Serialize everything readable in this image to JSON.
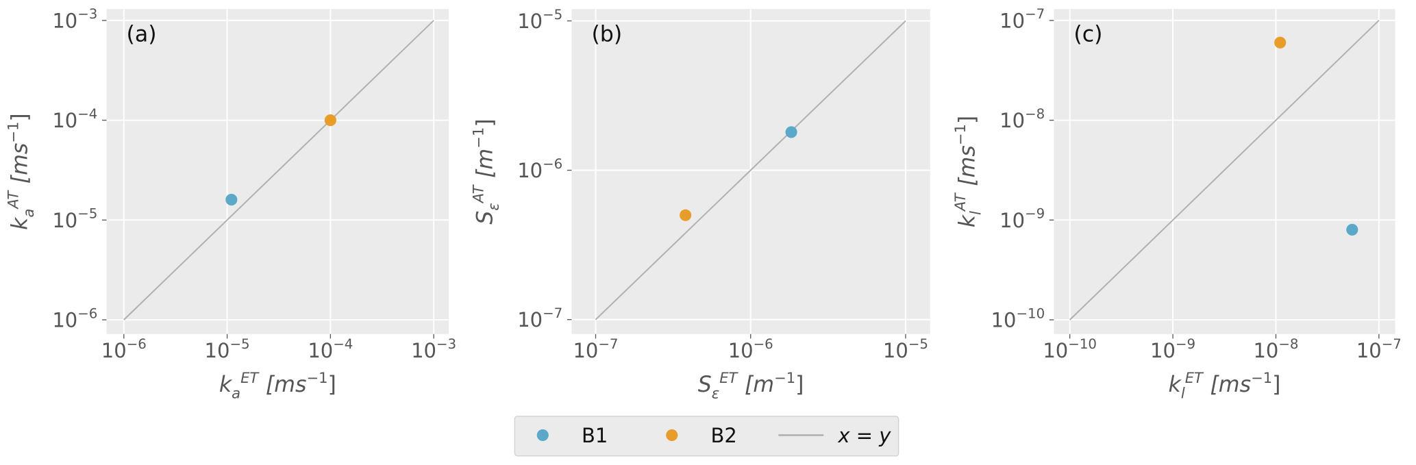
{
  "chart_data": [
    {
      "type": "scatter",
      "annotation": "(a)",
      "xscale": "log",
      "yscale": "log",
      "grid": true,
      "xlabel": {
        "symbol": "k",
        "sub": "a",
        "sup": "ET",
        "unit": "[ms",
        "unit_sup": "−1",
        "close": "]"
      },
      "ylabel": {
        "symbol": "k",
        "sub": "a",
        "sup": "AT",
        "unit": "[ms",
        "unit_sup": "−1",
        "close": "]"
      },
      "xlim": [
        6.8e-07,
        0.0014
      ],
      "ylim": [
        7.2e-07,
        0.0013
      ],
      "xticks": [
        {
          "value": 1e-06,
          "label": {
            "base": "10",
            "exp": "−6"
          }
        },
        {
          "value": 1e-05,
          "label": {
            "base": "10",
            "exp": "−5"
          }
        },
        {
          "value": 0.0001,
          "label": {
            "base": "10",
            "exp": "−4"
          }
        },
        {
          "value": 0.001,
          "label": {
            "base": "10",
            "exp": "−3"
          }
        }
      ],
      "yticks": [
        {
          "value": 1e-06,
          "label": {
            "base": "10",
            "exp": "−6"
          }
        },
        {
          "value": 1e-05,
          "label": {
            "base": "10",
            "exp": "−5"
          }
        },
        {
          "value": 0.0001,
          "label": {
            "base": "10",
            "exp": "−4"
          }
        },
        {
          "value": 0.001,
          "label": {
            "base": "10",
            "exp": "−3"
          }
        }
      ],
      "series": [
        {
          "name": "B1",
          "color": "#5ba8c9",
          "x": [
            1.1e-05
          ],
          "values": [
            1.6e-05
          ]
        },
        {
          "name": "B2",
          "color": "#e89c2a",
          "x": [
            0.0001
          ],
          "values": [
            0.0001
          ]
        }
      ],
      "reference_line": {
        "name": "x = y",
        "color": "#b0b0b0",
        "x": [
          1e-06,
          0.001
        ],
        "values": [
          1e-06,
          0.001
        ]
      },
      "legend": "bottom"
    },
    {
      "type": "scatter",
      "annotation": "(b)",
      "xscale": "log",
      "yscale": "log",
      "grid": true,
      "xlabel": {
        "symbol": "S",
        "sub": "ε",
        "sup": "ET",
        "unit": "[m",
        "unit_sup": "−1",
        "close": "]"
      },
      "ylabel": {
        "symbol": "S",
        "sub": "ε",
        "sup": "AT",
        "unit": "[m",
        "unit_sup": "−1",
        "close": "]"
      },
      "xlim": [
        7e-08,
        1.44e-05
      ],
      "ylim": [
        8e-08,
        1.2e-05
      ],
      "xticks": [
        {
          "value": 1e-07,
          "label": {
            "base": "10",
            "exp": "−7"
          }
        },
        {
          "value": 1e-06,
          "label": {
            "base": "10",
            "exp": "−6"
          }
        },
        {
          "value": 1e-05,
          "label": {
            "base": "10",
            "exp": "−5"
          }
        }
      ],
      "yticks": [
        {
          "value": 1e-07,
          "label": {
            "base": "10",
            "exp": "−7"
          }
        },
        {
          "value": 1e-06,
          "label": {
            "base": "10",
            "exp": "−6"
          }
        },
        {
          "value": 1e-05,
          "label": {
            "base": "10",
            "exp": "−5"
          }
        }
      ],
      "series": [
        {
          "name": "B1",
          "color": "#5ba8c9",
          "x": [
            1.83e-06
          ],
          "values": [
            1.8e-06
          ]
        },
        {
          "name": "B2",
          "color": "#e89c2a",
          "x": [
            3.8e-07
          ],
          "values": [
            5e-07
          ]
        }
      ],
      "reference_line": {
        "name": "x = y",
        "color": "#b0b0b0",
        "x": [
          1e-07,
          1e-05
        ],
        "values": [
          1e-07,
          1e-05
        ]
      }
    },
    {
      "type": "scatter",
      "annotation": "(c)",
      "xscale": "log",
      "yscale": "log",
      "grid": true,
      "xlabel": {
        "symbol": "k",
        "sub": "l",
        "sup": "ET",
        "unit": "[ms",
        "unit_sup": "−1",
        "close": "]"
      },
      "ylabel": {
        "symbol": "k",
        "sub": "l",
        "sup": "AT",
        "unit": "[ms",
        "unit_sup": "−1",
        "close": "]"
      },
      "xlim": [
        7e-11,
        1.44e-07
      ],
      "ylim": [
        7.2e-11,
        1.3e-07
      ],
      "xticks": [
        {
          "value": 1e-10,
          "label": {
            "base": "10",
            "exp": "−10"
          }
        },
        {
          "value": 1e-09,
          "label": {
            "base": "10",
            "exp": "−9"
          }
        },
        {
          "value": 1e-08,
          "label": {
            "base": "10",
            "exp": "−8"
          }
        },
        {
          "value": 1e-07,
          "label": {
            "base": "10",
            "exp": "−7"
          }
        }
      ],
      "yticks": [
        {
          "value": 1e-10,
          "label": {
            "base": "10",
            "exp": "−10"
          }
        },
        {
          "value": 1e-09,
          "label": {
            "base": "10",
            "exp": "−9"
          }
        },
        {
          "value": 1e-08,
          "label": {
            "base": "10",
            "exp": "−8"
          }
        },
        {
          "value": 1e-07,
          "label": {
            "base": "10",
            "exp": "−7"
          }
        }
      ],
      "series": [
        {
          "name": "B1",
          "color": "#5ba8c9",
          "x": [
            5.5e-08
          ],
          "values": [
            8e-10
          ]
        },
        {
          "name": "B2",
          "color": "#e89c2a",
          "x": [
            1.1e-08
          ],
          "values": [
            6e-08
          ]
        }
      ],
      "reference_line": {
        "name": "x = y",
        "color": "#b0b0b0",
        "x": [
          1e-10,
          1e-07
        ],
        "values": [
          1e-10,
          1e-07
        ]
      }
    }
  ]
}
